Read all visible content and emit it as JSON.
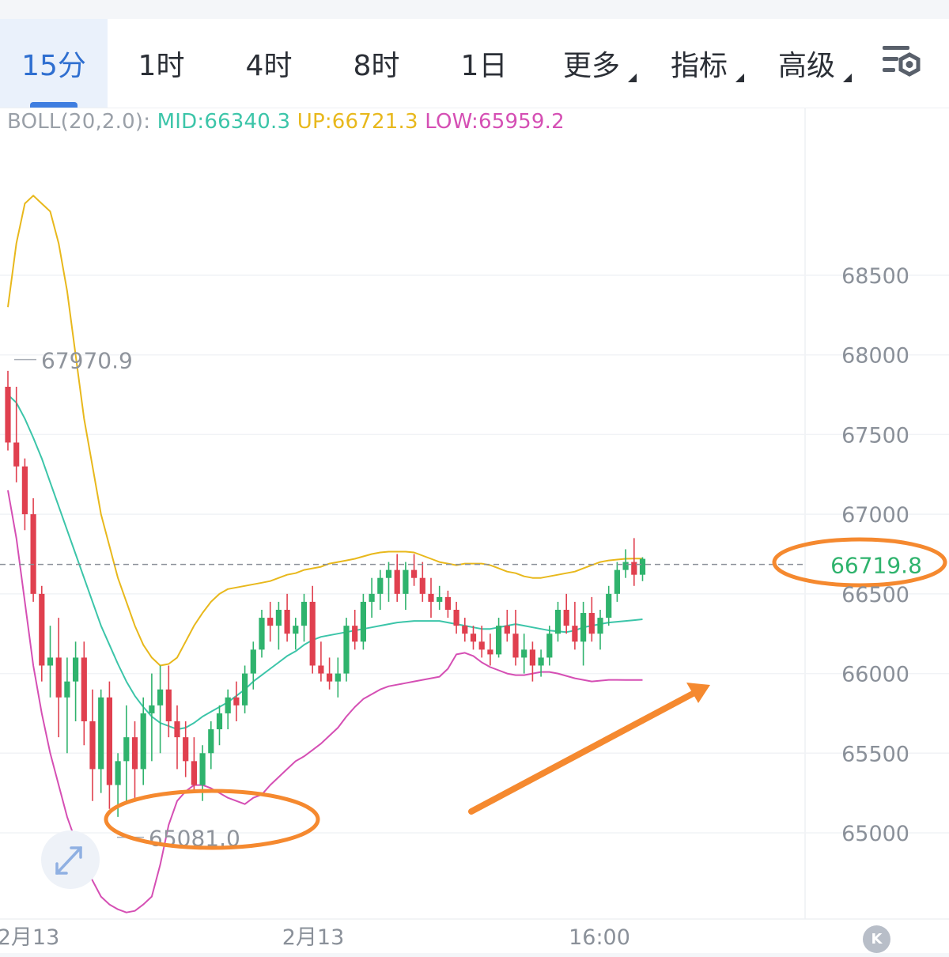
{
  "tabs": [
    {
      "label": "15分",
      "active": true
    },
    {
      "label": "1时",
      "active": false
    },
    {
      "label": "4时",
      "active": false
    },
    {
      "label": "8时",
      "active": false
    },
    {
      "label": "1日",
      "active": false
    },
    {
      "label": "更多",
      "active": false,
      "dropdown": true
    },
    {
      "label": "指标",
      "active": false,
      "dropdown": true
    },
    {
      "label": "高级",
      "active": false,
      "dropdown": true
    }
  ],
  "settings_icon": "chart-settings-icon",
  "legend": {
    "name": "BOLL(20,2.0):",
    "mid": "MID:66340.3",
    "up": "UP:66721.3",
    "low": "LOW:65959.2"
  },
  "colors": {
    "up_candle": "#2fb36d",
    "down_candle": "#e0404f",
    "mid_line": "#3cc5a9",
    "upper_band": "#e8b81c",
    "lower_band": "#d54fb4",
    "annotation": "#f5892f",
    "active_tab": "#2f6fd0"
  },
  "chart_data": {
    "type": "candlestick",
    "timeframe": "15分",
    "indicator": "BOLL(20,2.0)",
    "ylim": [
      64500,
      69000
    ],
    "y_ticks": [
      68500,
      68000,
      67500,
      67000,
      66500,
      66000,
      65500,
      65000
    ],
    "x_tick_labels": [
      "2月13",
      "2月13",
      "16:00"
    ],
    "grid": true,
    "last_price": 66719.8,
    "last_price_label": "66719.8",
    "high_marker": {
      "value": 67970.9,
      "label": "67970.9"
    },
    "low_marker": {
      "value": 65081.0,
      "label": "65081.0"
    },
    "candles": [
      [
        67800,
        67900,
        67400,
        67450
      ],
      [
        67450,
        67800,
        67200,
        67300
      ],
      [
        67300,
        67350,
        66900,
        67000
      ],
      [
        67000,
        67100,
        66450,
        66500
      ],
      [
        66500,
        66550,
        65950,
        66050
      ],
      [
        66050,
        66300,
        65850,
        66100
      ],
      [
        66100,
        66350,
        65600,
        65850
      ],
      [
        65850,
        66100,
        65500,
        65950
      ],
      [
        65950,
        66200,
        65700,
        66100
      ],
      [
        66100,
        66200,
        65550,
        65700
      ],
      [
        65700,
        65900,
        65200,
        65400
      ],
      [
        65400,
        65900,
        65250,
        65850
      ],
      [
        65850,
        65950,
        65150,
        65300
      ],
      [
        65300,
        65500,
        65100,
        65450
      ],
      [
        65450,
        65800,
        65200,
        65600
      ],
      [
        65600,
        65700,
        65200,
        65400
      ],
      [
        65400,
        65850,
        65300,
        65750
      ],
      [
        65750,
        66000,
        65450,
        65800
      ],
      [
        65800,
        66050,
        65500,
        65900
      ],
      [
        65900,
        66050,
        65600,
        65700
      ],
      [
        65700,
        65800,
        65400,
        65600
      ],
      [
        65600,
        65700,
        65350,
        65450
      ],
      [
        65450,
        65600,
        65250,
        65300
      ],
      [
        65300,
        65550,
        65200,
        65500
      ],
      [
        65500,
        65700,
        65400,
        65650
      ],
      [
        65650,
        65800,
        65550,
        65750
      ],
      [
        65750,
        65900,
        65650,
        65850
      ],
      [
        65850,
        65950,
        65700,
        65800
      ],
      [
        65800,
        66050,
        65750,
        66000
      ],
      [
        66000,
        66200,
        65900,
        66150
      ],
      [
        66150,
        66400,
        66100,
        66350
      ],
      [
        66350,
        66450,
        66200,
        66300
      ],
      [
        66300,
        66450,
        66150,
        66400
      ],
      [
        66400,
        66500,
        66200,
        66250
      ],
      [
        66250,
        66350,
        66150,
        66300
      ],
      [
        66300,
        66500,
        66200,
        66450
      ],
      [
        66450,
        66550,
        66000,
        66050
      ],
      [
        66050,
        66200,
        65950,
        66000
      ],
      [
        66000,
        66100,
        65900,
        65950
      ],
      [
        65950,
        66100,
        65850,
        66000
      ],
      [
        66000,
        66350,
        65950,
        66300
      ],
      [
        66300,
        66400,
        66150,
        66200
      ],
      [
        66200,
        66500,
        66150,
        66450
      ],
      [
        66450,
        66600,
        66350,
        66500
      ],
      [
        66500,
        66650,
        66400,
        66600
      ],
      [
        66600,
        66700,
        66450,
        66650
      ],
      [
        66650,
        66750,
        66450,
        66500
      ],
      [
        66500,
        66700,
        66400,
        66650
      ],
      [
        66650,
        66750,
        66550,
        66600
      ],
      [
        66600,
        66700,
        66450,
        66500
      ],
      [
        66500,
        66600,
        66350,
        66450
      ],
      [
        66450,
        66550,
        66400,
        66480
      ],
      [
        66480,
        66520,
        66350,
        66400
      ],
      [
        66400,
        66450,
        66250,
        66300
      ],
      [
        66300,
        66350,
        66200,
        66250
      ],
      [
        66250,
        66300,
        66150,
        66200
      ],
      [
        66200,
        66300,
        66100,
        66150
      ],
      [
        66150,
        66250,
        66050,
        66120
      ],
      [
        66120,
        66350,
        66100,
        66300
      ],
      [
        66300,
        66400,
        66200,
        66250
      ],
      [
        66250,
        66400,
        66050,
        66100
      ],
      [
        66100,
        66250,
        66000,
        66150
      ],
      [
        66150,
        66200,
        65950,
        66050
      ],
      [
        66050,
        66150,
        65980,
        66100
      ],
      [
        66100,
        66300,
        66050,
        66250
      ],
      [
        66250,
        66450,
        66200,
        66400
      ],
      [
        66400,
        66500,
        66250,
        66300
      ],
      [
        66300,
        66450,
        66150,
        66200
      ],
      [
        66200,
        66450,
        66050,
        66380
      ],
      [
        66380,
        66480,
        66200,
        66250
      ],
      [
        66250,
        66400,
        66150,
        66350
      ],
      [
        66350,
        66550,
        66300,
        66500
      ],
      [
        66500,
        66700,
        66450,
        66650
      ],
      [
        66650,
        66780,
        66600,
        66700
      ],
      [
        66700,
        66850,
        66550,
        66620
      ],
      [
        66620,
        66730,
        66580,
        66719.8
      ]
    ],
    "series": [
      {
        "name": "MID",
        "values": [
          67750,
          67700,
          67600,
          67480,
          67350,
          67200,
          67050,
          66900,
          66750,
          66600,
          66450,
          66300,
          66180,
          66060,
          65950,
          65860,
          65790,
          65730,
          65690,
          65670,
          65650,
          65660,
          65690,
          65730,
          65760,
          65790,
          65820,
          65860,
          65900,
          65950,
          65990,
          66030,
          66070,
          66110,
          66140,
          66180,
          66210,
          66230,
          66240,
          66250,
          66260,
          66270,
          66280,
          66290,
          66300,
          66310,
          66320,
          66325,
          66330,
          66330,
          66330,
          66330,
          66320,
          66310,
          66300,
          66290,
          66280,
          66280,
          66290,
          66300,
          66310,
          66300,
          66290,
          66280,
          66270,
          66265,
          66260,
          66270,
          66290,
          66300,
          66310,
          66320,
          66325,
          66330,
          66335,
          66340.3
        ]
      },
      {
        "name": "UP",
        "values": [
          68300,
          68700,
          68950,
          69000,
          68950,
          68900,
          68700,
          68400,
          68000,
          67600,
          67300,
          67000,
          66800,
          66600,
          66450,
          66300,
          66180,
          66100,
          66050,
          66060,
          66100,
          66200,
          66300,
          66380,
          66450,
          66500,
          66530,
          66540,
          66550,
          66560,
          66570,
          66580,
          66600,
          66620,
          66630,
          66650,
          66660,
          66670,
          66690,
          66700,
          66710,
          66720,
          66735,
          66750,
          66760,
          66765,
          66765,
          66765,
          66760,
          66740,
          66720,
          66700,
          66690,
          66680,
          66690,
          66690,
          66690,
          66680,
          66660,
          66640,
          66630,
          66610,
          66600,
          66600,
          66610,
          66620,
          66630,
          66640,
          66660,
          66680,
          66700,
          66710,
          66715,
          66720,
          66721.3,
          66721.3
        ]
      },
      {
        "name": "LOW",
        "values": [
          67150,
          66850,
          66450,
          66050,
          65750,
          65500,
          65300,
          65100,
          64950,
          64800,
          64700,
          64600,
          64550,
          64520,
          64500,
          64510,
          64550,
          64600,
          64800,
          65050,
          65200,
          65260,
          65300,
          65300,
          65280,
          65250,
          65220,
          65200,
          65180,
          65220,
          65240,
          65300,
          65350,
          65400,
          65450,
          65480,
          65520,
          65560,
          65610,
          65660,
          65730,
          65790,
          65840,
          65870,
          65900,
          65920,
          65930,
          65940,
          65950,
          65960,
          65970,
          65980,
          66030,
          66120,
          66130,
          66110,
          66070,
          66040,
          66020,
          66000,
          65990,
          65990,
          66000,
          66010,
          66010,
          66000,
          65985,
          65970,
          65960,
          65950,
          65955,
          65960,
          65960,
          65959.2,
          65959.2,
          65959.2
        ]
      }
    ]
  }
}
